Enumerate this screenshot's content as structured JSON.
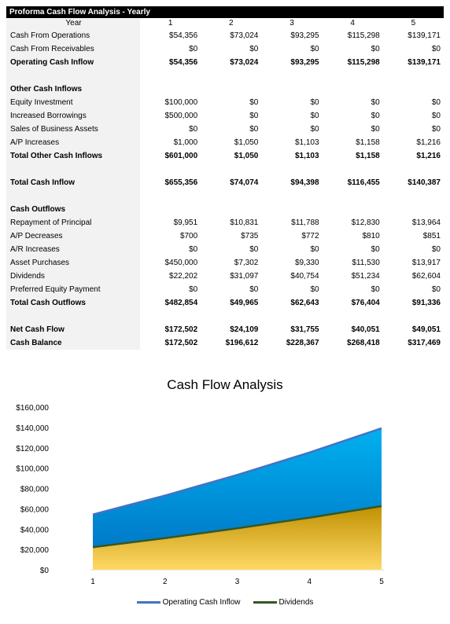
{
  "table": {
    "title": "Proforma Cash Flow Analysis - Yearly",
    "year_label": "Year",
    "years": [
      "1",
      "2",
      "3",
      "4",
      "5"
    ],
    "rows": [
      {
        "label": "Cash From Operations",
        "bold": false,
        "values": [
          "$54,356",
          "$73,024",
          "$93,295",
          "$115,298",
          "$139,171"
        ]
      },
      {
        "label": "Cash From Receivables",
        "bold": false,
        "values": [
          "$0",
          "$0",
          "$0",
          "$0",
          "$0"
        ]
      },
      {
        "label": "Operating Cash Inflow",
        "bold": true,
        "values": [
          "$54,356",
          "$73,024",
          "$93,295",
          "$115,298",
          "$139,171"
        ]
      },
      {
        "label": "",
        "bold": false,
        "values": [
          "",
          "",
          "",
          "",
          ""
        ]
      },
      {
        "label": "Other Cash Inflows",
        "bold": true,
        "values": [
          "",
          "",
          "",
          "",
          ""
        ]
      },
      {
        "label": "Equity Investment",
        "bold": false,
        "values": [
          "$100,000",
          "$0",
          "$0",
          "$0",
          "$0"
        ]
      },
      {
        "label": "Increased Borrowings",
        "bold": false,
        "values": [
          "$500,000",
          "$0",
          "$0",
          "$0",
          "$0"
        ]
      },
      {
        "label": "Sales of Business Assets",
        "bold": false,
        "values": [
          "$0",
          "$0",
          "$0",
          "$0",
          "$0"
        ]
      },
      {
        "label": "A/P Increases",
        "bold": false,
        "values": [
          "$1,000",
          "$1,050",
          "$1,103",
          "$1,158",
          "$1,216"
        ]
      },
      {
        "label": "Total Other Cash Inflows",
        "bold": true,
        "values": [
          "$601,000",
          "$1,050",
          "$1,103",
          "$1,158",
          "$1,216"
        ]
      },
      {
        "label": "",
        "bold": false,
        "values": [
          "",
          "",
          "",
          "",
          ""
        ]
      },
      {
        "label": "Total Cash Inflow",
        "bold": true,
        "values": [
          "$655,356",
          "$74,074",
          "$94,398",
          "$116,455",
          "$140,387"
        ]
      },
      {
        "label": "",
        "bold": false,
        "values": [
          "",
          "",
          "",
          "",
          ""
        ]
      },
      {
        "label": "Cash Outflows",
        "bold": true,
        "values": [
          "",
          "",
          "",
          "",
          ""
        ]
      },
      {
        "label": "Repayment of Principal",
        "bold": false,
        "values": [
          "$9,951",
          "$10,831",
          "$11,788",
          "$12,830",
          "$13,964"
        ]
      },
      {
        "label": "A/P Decreases",
        "bold": false,
        "values": [
          "$700",
          "$735",
          "$772",
          "$810",
          "$851"
        ]
      },
      {
        "label": "A/R Increases",
        "bold": false,
        "values": [
          "$0",
          "$0",
          "$0",
          "$0",
          "$0"
        ]
      },
      {
        "label": "Asset Purchases",
        "bold": false,
        "values": [
          "$450,000",
          "$7,302",
          "$9,330",
          "$11,530",
          "$13,917"
        ]
      },
      {
        "label": "Dividends",
        "bold": false,
        "values": [
          "$22,202",
          "$31,097",
          "$40,754",
          "$51,234",
          "$62,604"
        ]
      },
      {
        "label": "Preferred Equity Payment",
        "bold": false,
        "values": [
          "$0",
          "$0",
          "$0",
          "$0",
          "$0"
        ]
      },
      {
        "label": "Total Cash Outflows",
        "bold": true,
        "values": [
          "$482,854",
          "$49,965",
          "$62,643",
          "$76,404",
          "$91,336"
        ]
      },
      {
        "label": "",
        "bold": false,
        "values": [
          "",
          "",
          "",
          "",
          ""
        ]
      },
      {
        "label": "Net Cash Flow",
        "bold": true,
        "values": [
          "$172,502",
          "$24,109",
          "$31,755",
          "$40,051",
          "$49,051"
        ]
      },
      {
        "label": "Cash Balance",
        "bold": true,
        "values": [
          "$172,502",
          "$196,612",
          "$228,367",
          "$268,418",
          "$317,469"
        ]
      }
    ]
  },
  "chart_data": {
    "type": "area",
    "title": "Cash Flow Analysis",
    "x": [
      1,
      2,
      3,
      4,
      5
    ],
    "series": [
      {
        "name": "Operating Cash Inflow",
        "values": [
          54356,
          73024,
          93295,
          115298,
          139171
        ],
        "line_color": "#4472c4",
        "fill_top": "#00b0f0",
        "fill_bottom": "#0070c0"
      },
      {
        "name": "Dividends",
        "values": [
          22202,
          31097,
          40754,
          51234,
          62604
        ],
        "line_color": "#375623",
        "fill_top": "#bf9000",
        "fill_bottom": "#ffd966"
      }
    ],
    "yticks": [
      "$0",
      "$20,000",
      "$40,000",
      "$60,000",
      "$80,000",
      "$100,000",
      "$120,000",
      "$140,000",
      "$160,000"
    ],
    "xticks": [
      "1",
      "2",
      "3",
      "4",
      "5"
    ],
    "ylim": [
      0,
      160000
    ],
    "grid": false,
    "legend": "bottom",
    "xlabel": "",
    "ylabel": ""
  }
}
